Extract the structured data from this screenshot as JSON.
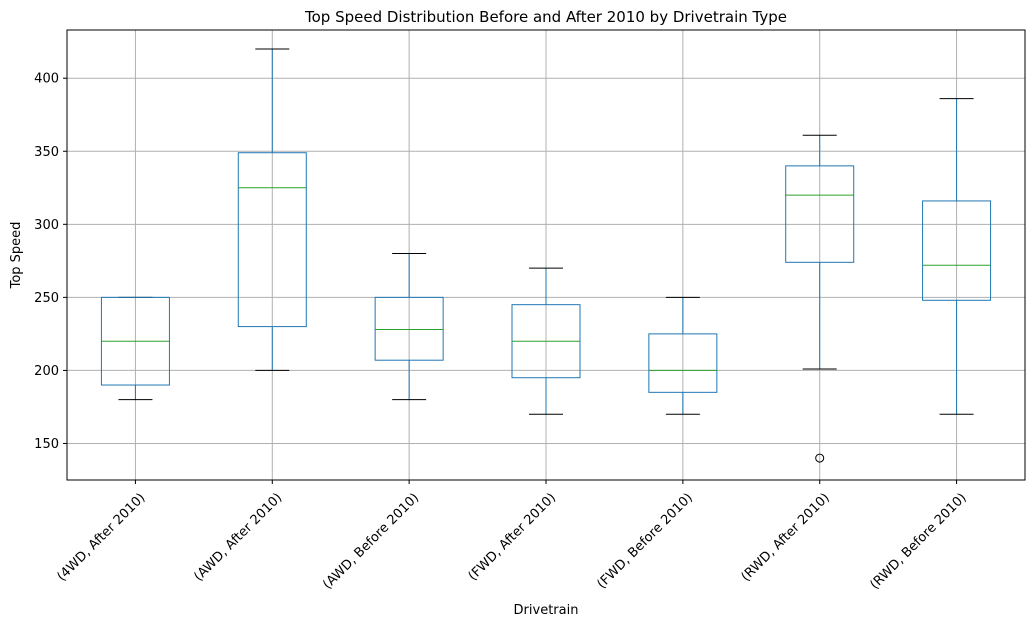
{
  "chart_data": {
    "type": "boxplot",
    "title": "Top Speed Distribution Before and After 2010 by Drivetrain Type",
    "xlabel": "Drivetrain",
    "ylabel": "Top Speed",
    "ylim": [
      125,
      433
    ],
    "yticks": [
      150,
      200,
      250,
      300,
      350,
      400
    ],
    "grid": true,
    "categories": [
      "(4WD, After 2010)",
      "(AWD, After 2010)",
      "(AWD, Before 2010)",
      "(FWD, After 2010)",
      "(FWD, Before 2010)",
      "(RWD, After 2010)",
      "(RWD, Before 2010)"
    ],
    "boxes": [
      {
        "whisker_low": 180,
        "q1": 190,
        "median": 220,
        "q3": 250,
        "whisker_high": 250,
        "outliers": []
      },
      {
        "whisker_low": 200,
        "q1": 230,
        "median": 325,
        "q3": 349,
        "whisker_high": 420,
        "outliers": []
      },
      {
        "whisker_low": 180,
        "q1": 207,
        "median": 228,
        "q3": 250,
        "whisker_high": 280,
        "outliers": []
      },
      {
        "whisker_low": 170,
        "q1": 195,
        "median": 220,
        "q3": 245,
        "whisker_high": 270,
        "outliers": []
      },
      {
        "whisker_low": 170,
        "q1": 185,
        "median": 200,
        "q3": 225,
        "whisker_high": 250,
        "outliers": []
      },
      {
        "whisker_low": 201,
        "q1": 274,
        "median": 320,
        "q3": 340,
        "whisker_high": 361,
        "outliers": [
          140
        ]
      },
      {
        "whisker_low": 170,
        "q1": 248,
        "median": 272,
        "q3": 316,
        "whisker_high": 386,
        "outliers": []
      }
    ],
    "colors": {
      "box": "#1f77b4",
      "median": "#2ca02c",
      "whisker_cap": "#000000",
      "outlier": "#000000",
      "grid": "#b0b0b0"
    }
  }
}
